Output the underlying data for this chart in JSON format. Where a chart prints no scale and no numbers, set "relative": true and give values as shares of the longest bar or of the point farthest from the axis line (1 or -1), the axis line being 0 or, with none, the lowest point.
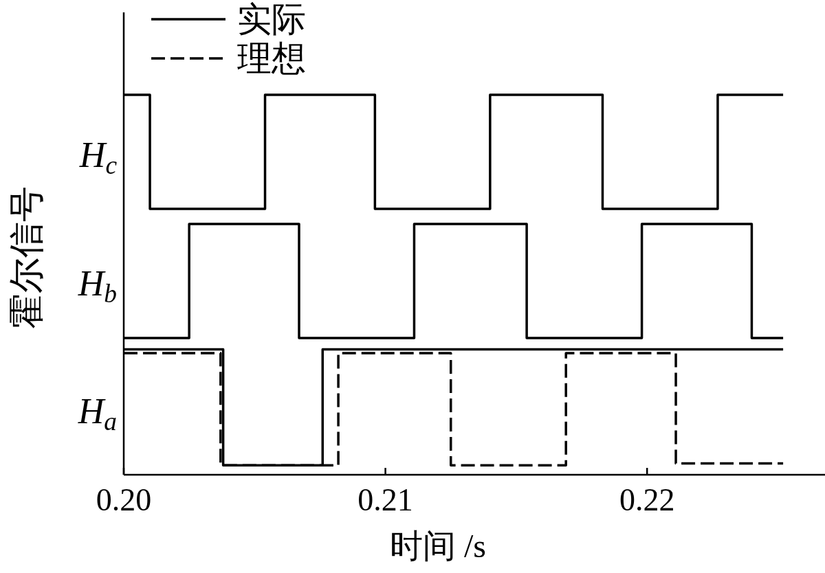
{
  "chart_data": {
    "type": "step",
    "xlabel": "时间 /s",
    "ylabel": "霍尔信号",
    "relative": true,
    "xlim": [
      0.2,
      0.2268
    ],
    "xticks": [
      {
        "value": 0.2,
        "label": "0.20"
      },
      0.21,
      0.22
    ],
    "legend": "top left",
    "series": [
      {
        "name": "实际",
        "color": "#000000",
        "line_style": "solid",
        "x": [
          0.2,
          0.2038,
          0.2076,
          0.2252
        ],
        "values": [
          0.33,
          0.025,
          0.33,
          0.33
        ]
      },
      {
        "name": "理想",
        "color": "#000000",
        "line_style": "dashed",
        "x": [
          0.2,
          0.2037,
          0.2082,
          0.2125,
          0.2169,
          0.2211,
          0.2252
        ],
        "values": [
          0.32,
          0.025,
          0.32,
          0.025,
          0.32,
          0.03,
          0.03
        ]
      },
      {
        "color": "#000000",
        "line_style": "solid",
        "x": [
          0.2,
          0.2025,
          0.2067,
          0.2111,
          0.2154,
          0.2198,
          0.224,
          0.2252
        ],
        "values": [
          0.36,
          0.66,
          0.36,
          0.66,
          0.36,
          0.66,
          0.36,
          0.36
        ]
      },
      {
        "color": "#000000",
        "line_style": "solid",
        "x": [
          0.2,
          0.201,
          0.2054,
          0.2096,
          0.214,
          0.2183,
          0.2227,
          0.2252
        ],
        "values": [
          1,
          0.7,
          1,
          0.7,
          1,
          0.7,
          1,
          1
        ]
      }
    ],
    "annotations": [
      "H$_{c}$",
      "H$_{b}$",
      "H$_{a}$"
    ]
  }
}
